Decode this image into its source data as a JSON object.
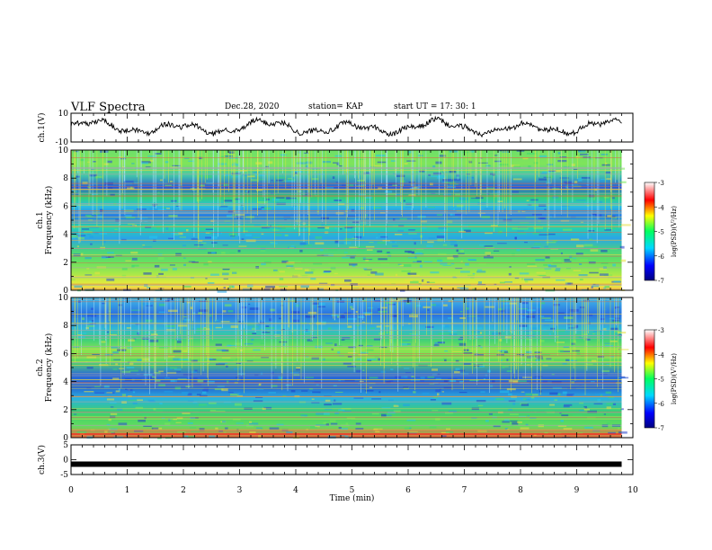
{
  "header": {
    "title": "VLF Spectra",
    "date": "Dec.28, 2020",
    "station": "station= KAP",
    "start": "start UT = 17: 30: 1"
  },
  "chart_data": [
    {
      "type": "line",
      "ylabel": "ch.1(V)",
      "ylim": [
        -10,
        10
      ],
      "yticks": [
        "10",
        "-10"
      ],
      "xlim": [
        0,
        10
      ],
      "trace": "noisy oscillation between about -7 and +7 V over 0–9.8 min"
    },
    {
      "type": "heatmap",
      "ylabel": "ch.1\nFrequency (kHz)",
      "ylim": [
        0,
        10
      ],
      "yticks": [
        "0",
        "2",
        "4",
        "6",
        "8",
        "10"
      ],
      "xlim": [
        0,
        10
      ],
      "colorbar": {
        "min": -7,
        "max": -3,
        "ticks": [
          "-3",
          "-4",
          "-5",
          "-6",
          "-7"
        ],
        "label": "log(PSD)(V²/Hz)"
      }
    },
    {
      "type": "heatmap",
      "ylabel": "ch.2\nFrequency (kHz)",
      "ylim": [
        0,
        10
      ],
      "yticks": [
        "0",
        "2",
        "4",
        "6",
        "8",
        "10"
      ],
      "xlim": [
        0,
        10
      ],
      "colorbar": {
        "min": -7,
        "max": -3,
        "ticks": [
          "-3",
          "-4",
          "-5",
          "-6",
          "-7"
        ],
        "label": "log(PSD)(V²/Hz)"
      }
    },
    {
      "type": "line",
      "ylabel": "ch.3(V)",
      "ylim": [
        -5,
        5
      ],
      "yticks": [
        "5",
        "0",
        "-5"
      ],
      "xlim": [
        0,
        10
      ],
      "xlabel": "Time (min)",
      "xticks": [
        "0",
        "1",
        "2",
        "3",
        "4",
        "5",
        "6",
        "7",
        "8",
        "9",
        "10"
      ],
      "level": -1.5
    }
  ]
}
